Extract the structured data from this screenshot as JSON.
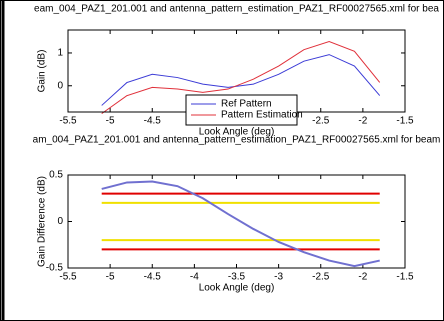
{
  "chart_data": [
    {
      "type": "line",
      "title": "eam_004_PAZ1_201.001 and antenna_pattern_estimation_PAZ1_RF00027565.xml for bea",
      "x_label": "Look Angle (deg)",
      "y_label": "Gain (dB)",
      "xlim": [
        -5.5,
        -1.5
      ],
      "xticks": [
        -5.5,
        -5,
        -4.5,
        -4,
        -3.5,
        -3,
        -2.5,
        -2,
        -1.5
      ],
      "ylim": [
        -0.8,
        1.7
      ],
      "yticks": [
        0,
        1
      ],
      "legend": "bottom-center",
      "series": [
        {
          "name": "Ref Pattern",
          "color": "#3b3bd6",
          "x": [
            -5.1,
            -4.8,
            -4.5,
            -4.2,
            -3.9,
            -3.6,
            -3.3,
            -3.0,
            -2.7,
            -2.4,
            -2.1,
            -1.8
          ],
          "values": [
            -0.6,
            0.1,
            0.35,
            0.25,
            0.05,
            -0.05,
            0.05,
            0.35,
            0.75,
            0.95,
            0.6,
            -0.3
          ]
        },
        {
          "name": "Pattern Estimation",
          "color": "#e0303a",
          "x": [
            -5.1,
            -4.8,
            -4.5,
            -4.2,
            -3.9,
            -3.6,
            -3.3,
            -3.0,
            -2.7,
            -2.4,
            -2.1,
            -1.8
          ],
          "values": [
            -0.85,
            -0.3,
            -0.05,
            -0.1,
            -0.2,
            -0.1,
            0.2,
            0.6,
            1.1,
            1.35,
            1.05,
            0.1
          ]
        }
      ]
    },
    {
      "type": "line",
      "title": "am_004_PAZ1_201.001 and antenna_pattern_estimation_PAZ1_RF00027565.xml for beam",
      "x_label": "Look Angle (deg)",
      "y_label": "Gain Difference (dB)",
      "xlim": [
        -5.5,
        -1.5
      ],
      "xticks": [
        -5.5,
        -5,
        -4.5,
        -4,
        -3.5,
        -3,
        -2.5,
        -2,
        -1.5
      ],
      "ylim": [
        -0.5,
        0.5
      ],
      "yticks": [
        -0.5,
        0,
        0.5
      ],
      "series": [
        {
          "color": "#e00000",
          "x": [
            -5.1,
            -1.8
          ],
          "values": [
            0.3,
            0.3
          ]
        },
        {
          "color": "#f0e000",
          "x": [
            -5.1,
            -1.8
          ],
          "values": [
            0.2,
            0.2
          ]
        },
        {
          "color": "#f0e000",
          "x": [
            -5.1,
            -1.8
          ],
          "values": [
            -0.2,
            -0.2
          ]
        },
        {
          "color": "#e00000",
          "x": [
            -5.1,
            -1.8
          ],
          "values": [
            -0.3,
            -0.3
          ]
        },
        {
          "color": "#7070d0",
          "x": [
            -5.1,
            -4.8,
            -4.5,
            -4.2,
            -3.9,
            -3.6,
            -3.3,
            -3.0,
            -2.7,
            -2.4,
            -2.1,
            -1.8
          ],
          "values": [
            0.35,
            0.42,
            0.43,
            0.38,
            0.25,
            0.08,
            -0.08,
            -0.22,
            -0.33,
            -0.42,
            -0.48,
            -0.42
          ]
        }
      ]
    }
  ]
}
